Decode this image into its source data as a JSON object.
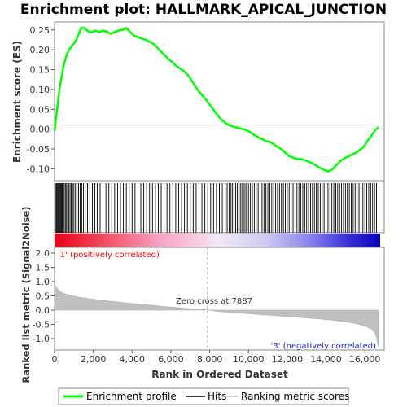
{
  "chart_data": {
    "type": "line",
    "title": "Enrichment plot: HALLMARK_APICAL_JUNCTION",
    "panels": {
      "es": {
        "ylabel": "Enrichment score (ES)",
        "ylim": [
          -0.13,
          0.27
        ],
        "yticks": [
          "0.25",
          "0.20",
          "0.15",
          "0.10",
          "0.05",
          "0.00",
          "-0.05",
          "-0.10"
        ],
        "ytick_values": [
          0.25,
          0.2,
          0.15,
          0.1,
          0.05,
          0.0,
          -0.05,
          -0.1
        ],
        "series": {
          "name": "Enrichment profile",
          "color": "#00ff00",
          "x": [
            0,
            60,
            130,
            200,
            280,
            360,
            450,
            550,
            650,
            760,
            880,
            1000,
            1120,
            1250,
            1380,
            1500,
            1650,
            1800,
            1950,
            2100,
            2300,
            2500,
            2700,
            2900,
            3100,
            3300,
            3500,
            3700,
            3900,
            4100,
            4300,
            4500,
            4700,
            4900,
            5100,
            5300,
            5500,
            5700,
            5900,
            6100,
            6300,
            6500,
            6700,
            6900,
            7100,
            7300,
            7500,
            7700,
            7887,
            8100,
            8300,
            8500,
            8700,
            8900,
            9100,
            9300,
            9500,
            9700,
            9900,
            10100,
            10300,
            10500,
            10700,
            10900,
            11100,
            11300,
            11500,
            11700,
            11900,
            12100,
            12300,
            12500,
            12700,
            12900,
            13100,
            13300,
            13500,
            13700,
            13900,
            14000,
            14100,
            14200,
            14300,
            14400,
            14500,
            14600,
            14700,
            14800,
            14900,
            15000,
            15100,
            15200,
            15300,
            15400,
            15500,
            15600,
            15700,
            15800,
            15900,
            16000,
            16100,
            16200,
            16300,
            16400,
            16500,
            16600,
            16700
          ],
          "y": [
            -0.005,
            0.02,
            0.05,
            0.08,
            0.11,
            0.13,
            0.155,
            0.175,
            0.19,
            0.2,
            0.21,
            0.215,
            0.225,
            0.24,
            0.255,
            0.255,
            0.25,
            0.245,
            0.245,
            0.248,
            0.245,
            0.248,
            0.246,
            0.24,
            0.245,
            0.248,
            0.25,
            0.255,
            0.245,
            0.235,
            0.232,
            0.228,
            0.225,
            0.22,
            0.215,
            0.205,
            0.195,
            0.185,
            0.175,
            0.168,
            0.158,
            0.152,
            0.145,
            0.135,
            0.12,
            0.105,
            0.092,
            0.08,
            0.07,
            0.055,
            0.042,
            0.03,
            0.02,
            0.012,
            0.008,
            0.005,
            0.003,
            0.0,
            -0.003,
            -0.008,
            -0.015,
            -0.02,
            -0.025,
            -0.03,
            -0.032,
            -0.038,
            -0.045,
            -0.05,
            -0.06,
            -0.068,
            -0.072,
            -0.075,
            -0.075,
            -0.078,
            -0.082,
            -0.087,
            -0.092,
            -0.098,
            -0.103,
            -0.105,
            -0.107,
            -0.105,
            -0.102,
            -0.098,
            -0.092,
            -0.088,
            -0.082,
            -0.078,
            -0.075,
            -0.072,
            -0.07,
            -0.068,
            -0.065,
            -0.063,
            -0.06,
            -0.058,
            -0.054,
            -0.05,
            -0.046,
            -0.04,
            -0.032,
            -0.025,
            -0.02,
            -0.012,
            -0.005,
            0.0,
            0.005
          ]
        }
      },
      "hits": {
        "positions": [
          30,
          80,
          120,
          160,
          200,
          240,
          280,
          320,
          360,
          400,
          450,
          500,
          560,
          620,
          680,
          740,
          800,
          860,
          930,
          1000,
          1080,
          1160,
          1240,
          1320,
          1400,
          1490,
          1580,
          1700,
          1820,
          1950,
          2080,
          2200,
          2350,
          2500,
          2650,
          2800,
          2950,
          3100,
          3250,
          3400,
          3550,
          3700,
          3850,
          4000,
          4150,
          4300,
          4450,
          4600,
          4750,
          4900,
          5050,
          5200,
          5350,
          5500,
          5650,
          5800,
          5950,
          6100,
          6250,
          6400,
          6550,
          6700,
          6850,
          7000,
          7150,
          7300,
          7450,
          7600,
          7750,
          7900,
          8050,
          8200,
          8350,
          8500,
          8650,
          8800,
          8900,
          9000,
          9100,
          9180,
          9260,
          9340,
          9420,
          9500,
          9580,
          9660,
          9740,
          9820,
          9900,
          10000,
          10100,
          10200,
          10300,
          10400,
          10500,
          10600,
          10700,
          10800,
          10900,
          11000,
          11100,
          11200,
          11300,
          11400,
          11500,
          11600,
          11700,
          11800,
          11900,
          12000,
          12100,
          12200,
          12300,
          12400,
          12500,
          12600,
          12700,
          12800,
          12900,
          13000,
          13100,
          13200,
          13300,
          13400,
          13500,
          13600,
          13700,
          13800,
          13900,
          14000,
          14100,
          14200,
          14300,
          14400,
          14500,
          14600,
          14700,
          14800,
          14900,
          15000,
          15100,
          15200,
          15300,
          15400,
          15500,
          15600,
          15700,
          15800,
          15900,
          16000,
          16100,
          16200,
          16300,
          16400,
          16500,
          16600
        ]
      },
      "ranked": {
        "ylabel": "Ranked list metric (Signal2Noise)",
        "xlabel": "Rank in Ordered Dataset",
        "ylim": [
          -1.4,
          2.2
        ],
        "yticks": [
          "2.0",
          "1.5",
          "1.0",
          "0.5",
          "0.0",
          "-0.5",
          "-1.0"
        ],
        "ytick_values": [
          2.0,
          1.5,
          1.0,
          0.5,
          0.0,
          -0.5,
          -1.0
        ],
        "x": [
          0,
          50,
          150,
          300,
          500,
          800,
          1200,
          1800,
          2500,
          3500,
          4500,
          5500,
          6500,
          7500,
          7887,
          8500,
          9500,
          10500,
          11500,
          12500,
          13500,
          14500,
          15200,
          15700,
          16000,
          16300,
          16500,
          16600,
          16700
        ],
        "y": [
          1.0,
          0.85,
          0.75,
          0.65,
          0.58,
          0.52,
          0.46,
          0.4,
          0.34,
          0.27,
          0.2,
          0.14,
          0.08,
          0.03,
          0.0,
          -0.05,
          -0.1,
          -0.15,
          -0.2,
          -0.25,
          -0.3,
          -0.37,
          -0.43,
          -0.5,
          -0.56,
          -0.65,
          -0.78,
          -0.95,
          -1.3
        ],
        "color": "#c0c0c0"
      }
    },
    "xlim": [
      0,
      17000
    ],
    "xticks": [
      "0",
      "2,000",
      "4,000",
      "6,000",
      "8,000",
      "10,000",
      "12,000",
      "14,000",
      "16,000"
    ],
    "xtick_values": [
      0,
      2000,
      4000,
      6000,
      8000,
      10000,
      12000,
      14000,
      16000
    ],
    "annotations": {
      "positive": "'1' (positively correlated)",
      "negative": "'3' (negatively correlated)",
      "zero_cross": "Zero cross at 7887",
      "zero_cross_value": 7887
    },
    "legend": {
      "items": [
        "Enrichment profile",
        "Hits",
        "Ranking metric scores"
      ],
      "colors": [
        "#00ff00",
        "#000000",
        "#c0c0c0"
      ],
      "placement": "bottom"
    }
  }
}
